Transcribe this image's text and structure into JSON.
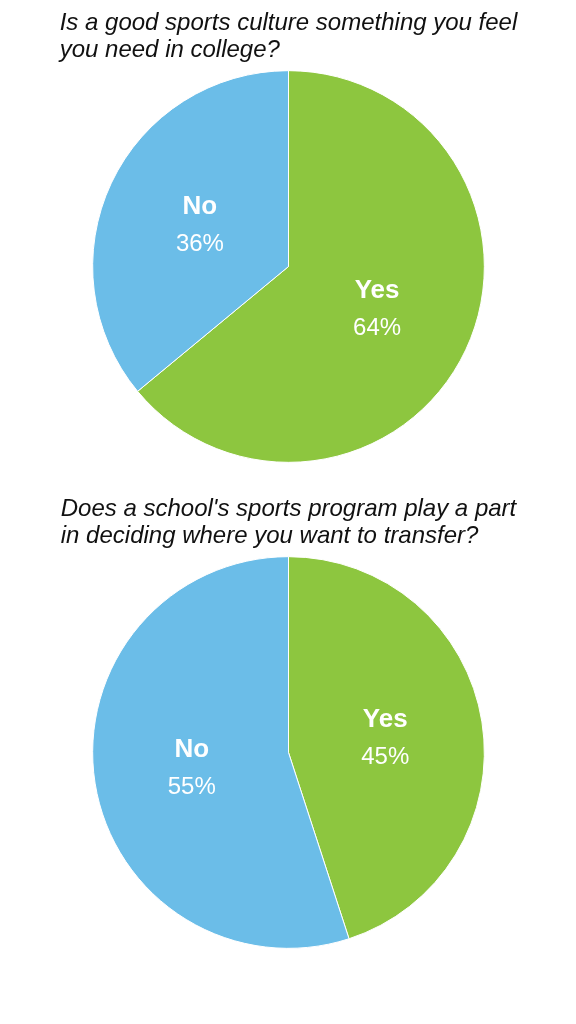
{
  "chart_data": [
    {
      "type": "pie",
      "title": "Is a good sports culture something you feel you need in college?",
      "categories": [
        "Yes",
        "No"
      ],
      "values": [
        64,
        36
      ],
      "colors": [
        "#8dc63f",
        "#6bbde8"
      ],
      "value_labels": [
        "64%",
        "36%"
      ]
    },
    {
      "type": "pie",
      "title": "Does a school's sports program play a part in deciding where you want to transfer?",
      "categories": [
        "Yes",
        "No"
      ],
      "values": [
        45,
        55
      ],
      "colors": [
        "#8dc63f",
        "#6bbde8"
      ],
      "value_labels": [
        "45%",
        "55%"
      ]
    }
  ]
}
